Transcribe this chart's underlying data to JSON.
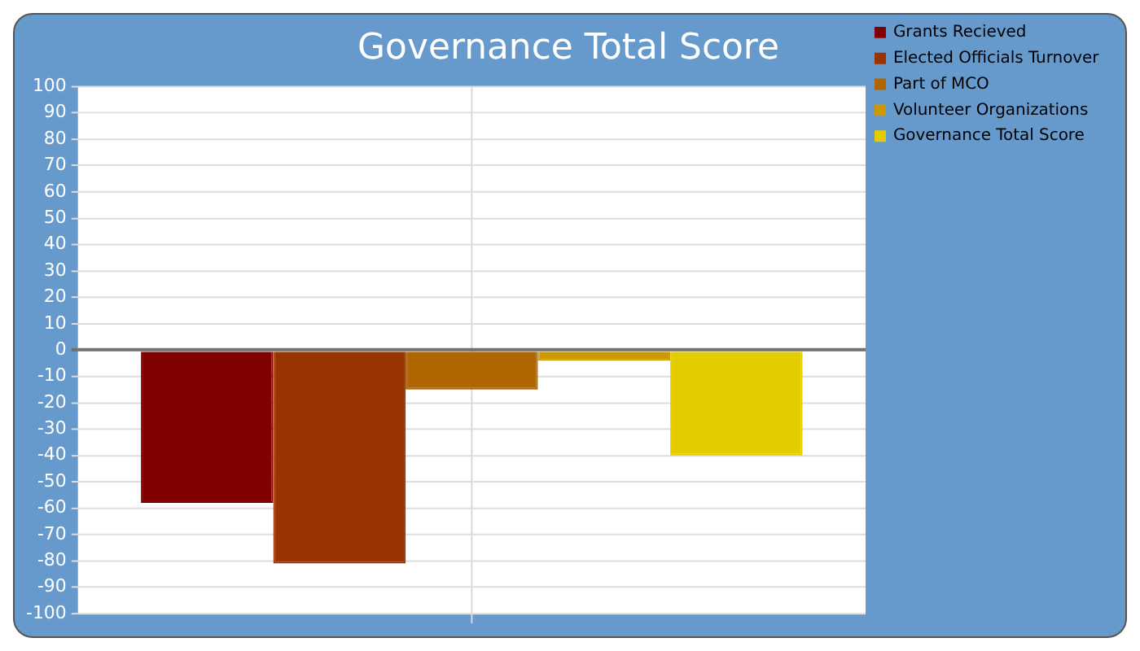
{
  "chart_data": {
    "type": "bar",
    "title": "Governance Total Score",
    "categories": [
      null
    ],
    "series": [
      {
        "name": "Grants Recieved",
        "color": "#800000",
        "values": [
          -58
        ]
      },
      {
        "name": "Elected Officials Turnover",
        "color": "#993300",
        "values": [
          -81
        ]
      },
      {
        "name": "Part of MCO",
        "color": "#b06600",
        "values": [
          -15
        ]
      },
      {
        "name": "Volunteer Organizations",
        "color": "#cc9900",
        "values": [
          -4
        ]
      },
      {
        "name": "Governance Total Score",
        "color": "#e3cc00",
        "values": [
          -40
        ]
      }
    ],
    "ylim": [
      -100,
      100
    ],
    "yticks": [
      -100,
      -90,
      -80,
      -70,
      -60,
      -50,
      -40,
      -30,
      -20,
      -10,
      0,
      10,
      20,
      30,
      40,
      50,
      60,
      70,
      80,
      90,
      100
    ],
    "grid": true,
    "legend": "top right"
  }
}
